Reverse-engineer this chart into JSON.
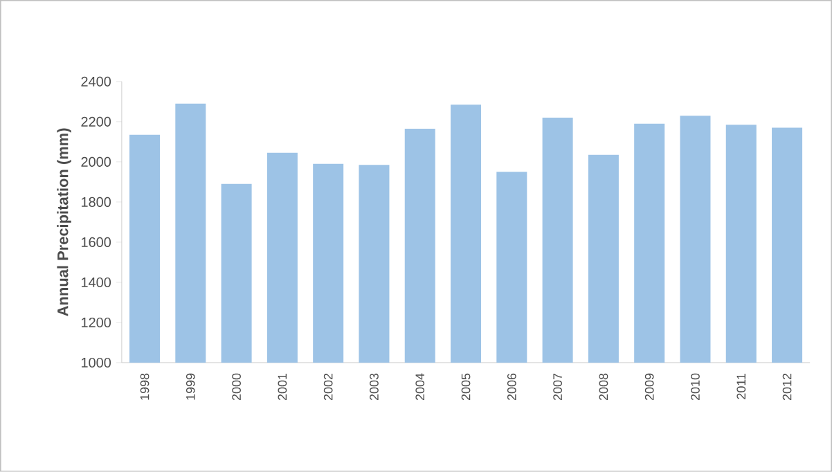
{
  "chart_data": {
    "type": "bar",
    "ylabel": "Annual Precipitation  (mm)",
    "categories": [
      "1998",
      "1999",
      "2000",
      "2001",
      "2002",
      "2003",
      "2004",
      "2005",
      "2006",
      "2007",
      "2008",
      "2009",
      "2010",
      "2011",
      "2012"
    ],
    "values": [
      2135,
      2290,
      1890,
      2045,
      1990,
      1985,
      2165,
      2285,
      1950,
      2220,
      2035,
      2190,
      2230,
      2185,
      2170
    ],
    "color": "#9dc3e6",
    "ylim": [
      1000,
      2400
    ],
    "yticks": [
      1000,
      1200,
      1400,
      1600,
      1800,
      2000,
      2200,
      2400
    ],
    "grid": false
  }
}
